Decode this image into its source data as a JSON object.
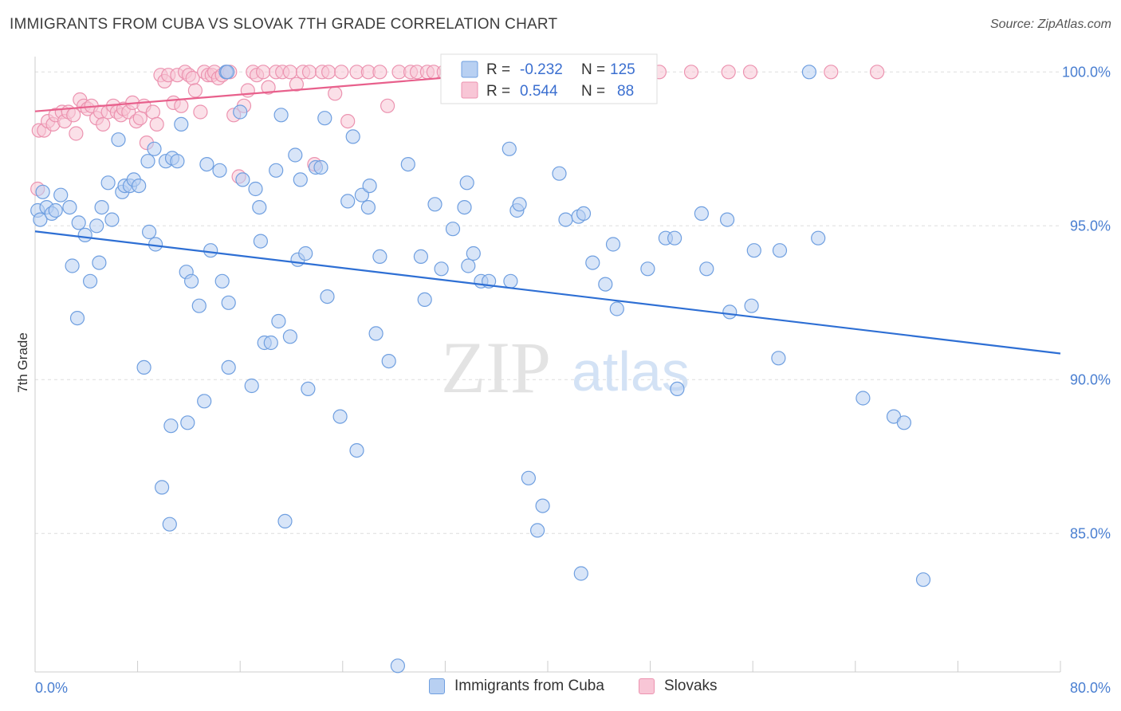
{
  "header": {
    "title": "IMMIGRANTS FROM CUBA VS SLOVAK 7TH GRADE CORRELATION CHART",
    "source": "Source: ZipAtlas.com"
  },
  "watermark": {
    "zip": "ZIP",
    "atlas": "atlas"
  },
  "colors": {
    "blue_fill": "#b8d0f2",
    "blue_stroke": "#6f9fe0",
    "blue_line": "#2e6fd4",
    "pink_fill": "#f8c6d6",
    "pink_stroke": "#ec93b0",
    "pink_line": "#e8608c",
    "tick_label": "#4a7fd1",
    "grid": "#dddddd"
  },
  "legend": {
    "rows": [
      {
        "r_label": "R =",
        "r_value": "-0.232",
        "n_label": "N =",
        "n_value": "125"
      },
      {
        "r_label": "R =",
        "r_value": "0.544",
        "n_label": "N =",
        "n_value": "88"
      }
    ]
  },
  "bottom_legend": [
    "Immigrants from Cuba",
    "Slovaks"
  ],
  "chart_data": {
    "type": "scatter",
    "title": "IMMIGRANTS FROM CUBA VS SLOVAK 7TH GRADE CORRELATION CHART",
    "ylabel": "7th Grade",
    "xlabel": "",
    "xlim": [
      0,
      80
    ],
    "ylim": [
      80.5,
      100.5
    ],
    "x_tick_labels": [
      "0.0%",
      "80.0%"
    ],
    "y_ticks": [
      85,
      90,
      95,
      100
    ],
    "y_tick_labels": [
      "85.0%",
      "90.0%",
      "95.0%",
      "100.0%"
    ],
    "grid": true,
    "legend_position": "top-center",
    "series": [
      {
        "name": "Immigrants from Cuba",
        "r": -0.232,
        "n": 125,
        "trend": {
          "x": [
            0,
            80
          ],
          "y": [
            94.82,
            90.85
          ]
        },
        "points": [
          [
            0.2,
            95.5
          ],
          [
            0.4,
            95.2
          ],
          [
            0.6,
            96.1
          ],
          [
            0.9,
            95.6
          ],
          [
            1.3,
            95.4
          ],
          [
            1.6,
            95.5
          ],
          [
            2.0,
            96.0
          ],
          [
            2.7,
            95.6
          ],
          [
            3.4,
            95.1
          ],
          [
            3.9,
            94.7
          ],
          [
            2.9,
            93.7
          ],
          [
            4.3,
            93.2
          ],
          [
            3.3,
            92.0
          ],
          [
            5.2,
            95.6
          ],
          [
            5.0,
            93.8
          ],
          [
            5.7,
            96.4
          ],
          [
            4.8,
            95.0
          ],
          [
            6.0,
            95.2
          ],
          [
            6.5,
            97.8
          ],
          [
            6.8,
            96.1
          ],
          [
            7.0,
            96.3
          ],
          [
            7.4,
            96.3
          ],
          [
            7.7,
            96.5
          ],
          [
            8.1,
            96.3
          ],
          [
            8.8,
            97.1
          ],
          [
            9.3,
            97.5
          ],
          [
            8.5,
            90.4
          ],
          [
            8.9,
            94.8
          ],
          [
            9.4,
            94.4
          ],
          [
            10.2,
            97.1
          ],
          [
            10.7,
            97.2
          ],
          [
            11.1,
            97.1
          ],
          [
            11.4,
            98.3
          ],
          [
            9.9,
            86.5
          ],
          [
            10.5,
            85.3
          ],
          [
            10.6,
            88.5
          ],
          [
            11.8,
            93.5
          ],
          [
            12.2,
            93.2
          ],
          [
            11.9,
            88.6
          ],
          [
            12.8,
            92.4
          ],
          [
            13.2,
            89.3
          ],
          [
            13.4,
            97.0
          ],
          [
            13.7,
            94.2
          ],
          [
            14.4,
            96.8
          ],
          [
            14.6,
            93.2
          ],
          [
            15.1,
            90.4
          ],
          [
            15.1,
            92.5
          ],
          [
            14.9,
            100.0
          ],
          [
            15.0,
            100.0
          ],
          [
            16.0,
            98.7
          ],
          [
            16.2,
            96.5
          ],
          [
            16.9,
            89.8
          ],
          [
            17.2,
            96.2
          ],
          [
            17.5,
            95.6
          ],
          [
            17.6,
            94.5
          ],
          [
            17.9,
            91.2
          ],
          [
            18.4,
            91.2
          ],
          [
            18.8,
            96.8
          ],
          [
            19.0,
            91.9
          ],
          [
            19.2,
            98.6
          ],
          [
            19.5,
            85.4
          ],
          [
            19.9,
            91.4
          ],
          [
            20.3,
            97.3
          ],
          [
            20.5,
            93.9
          ],
          [
            20.7,
            96.5
          ],
          [
            21.1,
            94.1
          ],
          [
            21.3,
            89.7
          ],
          [
            21.9,
            96.9
          ],
          [
            22.3,
            96.9
          ],
          [
            22.6,
            98.5
          ],
          [
            22.8,
            92.7
          ],
          [
            23.8,
            88.8
          ],
          [
            24.4,
            95.8
          ],
          [
            24.8,
            97.9
          ],
          [
            25.1,
            87.7
          ],
          [
            25.5,
            96.0
          ],
          [
            26.0,
            95.6
          ],
          [
            26.1,
            96.3
          ],
          [
            26.6,
            91.5
          ],
          [
            26.9,
            94.0
          ],
          [
            27.6,
            90.6
          ],
          [
            28.3,
            80.7
          ],
          [
            29.1,
            97.0
          ],
          [
            30.1,
            94.0
          ],
          [
            30.4,
            92.6
          ],
          [
            31.2,
            95.7
          ],
          [
            31.7,
            93.6
          ],
          [
            32.6,
            94.9
          ],
          [
            33.0,
            100.0
          ],
          [
            33.5,
            95.6
          ],
          [
            33.7,
            96.4
          ],
          [
            33.8,
            93.7
          ],
          [
            34.2,
            94.1
          ],
          [
            34.8,
            93.2
          ],
          [
            35.4,
            93.2
          ],
          [
            34.5,
            100.0
          ],
          [
            37.1,
            93.2
          ],
          [
            37.6,
            95.5
          ],
          [
            37.8,
            95.7
          ],
          [
            37.0,
            97.5
          ],
          [
            38.5,
            86.8
          ],
          [
            39.2,
            85.1
          ],
          [
            39.6,
            85.9
          ],
          [
            40.9,
            96.7
          ],
          [
            41.4,
            95.2
          ],
          [
            42.4,
            95.3
          ],
          [
            42.8,
            95.4
          ],
          [
            43.5,
            93.8
          ],
          [
            42.6,
            83.7
          ],
          [
            44.5,
            93.1
          ],
          [
            45.1,
            94.4
          ],
          [
            45.4,
            92.3
          ],
          [
            47.8,
            93.6
          ],
          [
            49.2,
            94.6
          ],
          [
            49.9,
            94.6
          ],
          [
            50.1,
            89.7
          ],
          [
            52.0,
            95.4
          ],
          [
            52.4,
            93.6
          ],
          [
            54.0,
            95.2
          ],
          [
            54.2,
            92.2
          ],
          [
            56.1,
            94.2
          ],
          [
            55.9,
            92.4
          ],
          [
            58.0,
            90.7
          ],
          [
            58.1,
            94.2
          ],
          [
            60.4,
            100.0
          ],
          [
            61.1,
            94.6
          ],
          [
            64.6,
            89.4
          ],
          [
            67.0,
            88.8
          ],
          [
            67.8,
            88.6
          ],
          [
            69.3,
            83.5
          ]
        ]
      },
      {
        "name": "Slovaks",
        "r": 0.544,
        "n": 88,
        "trend": {
          "x": [
            0,
            37.5
          ],
          "y": [
            98.72,
            100.0
          ]
        },
        "points": [
          [
            0.2,
            96.2
          ],
          [
            0.3,
            98.1
          ],
          [
            0.7,
            98.1
          ],
          [
            1.0,
            98.4
          ],
          [
            1.4,
            98.3
          ],
          [
            1.6,
            98.6
          ],
          [
            2.1,
            98.7
          ],
          [
            2.3,
            98.4
          ],
          [
            2.6,
            98.7
          ],
          [
            3.0,
            98.6
          ],
          [
            3.2,
            98.0
          ],
          [
            3.5,
            99.1
          ],
          [
            3.8,
            98.9
          ],
          [
            4.1,
            98.8
          ],
          [
            4.4,
            98.9
          ],
          [
            4.8,
            98.5
          ],
          [
            5.1,
            98.7
          ],
          [
            5.3,
            98.3
          ],
          [
            5.7,
            98.7
          ],
          [
            6.1,
            98.9
          ],
          [
            6.4,
            98.7
          ],
          [
            6.7,
            98.6
          ],
          [
            6.9,
            98.8
          ],
          [
            7.3,
            98.7
          ],
          [
            7.6,
            99.0
          ],
          [
            7.9,
            98.4
          ],
          [
            8.2,
            98.5
          ],
          [
            8.5,
            98.9
          ],
          [
            8.7,
            97.7
          ],
          [
            9.2,
            98.7
          ],
          [
            9.5,
            98.3
          ],
          [
            9.8,
            99.9
          ],
          [
            10.1,
            99.7
          ],
          [
            10.4,
            99.9
          ],
          [
            10.8,
            99.0
          ],
          [
            11.1,
            99.9
          ],
          [
            11.4,
            98.9
          ],
          [
            11.7,
            100.0
          ],
          [
            12.0,
            99.9
          ],
          [
            12.3,
            99.8
          ],
          [
            12.5,
            99.4
          ],
          [
            12.9,
            98.7
          ],
          [
            13.2,
            100.0
          ],
          [
            13.5,
            99.9
          ],
          [
            13.8,
            99.9
          ],
          [
            14.0,
            100.0
          ],
          [
            14.3,
            99.8
          ],
          [
            14.6,
            99.9
          ],
          [
            14.9,
            100.0
          ],
          [
            15.2,
            100.0
          ],
          [
            15.5,
            98.6
          ],
          [
            15.9,
            96.6
          ],
          [
            16.3,
            98.9
          ],
          [
            16.6,
            99.4
          ],
          [
            17.0,
            100.0
          ],
          [
            17.3,
            99.9
          ],
          [
            17.8,
            100.0
          ],
          [
            18.2,
            99.5
          ],
          [
            18.8,
            100.0
          ],
          [
            19.3,
            100.0
          ],
          [
            19.9,
            100.0
          ],
          [
            20.4,
            99.6
          ],
          [
            20.9,
            100.0
          ],
          [
            21.4,
            100.0
          ],
          [
            21.8,
            97.0
          ],
          [
            22.4,
            100.0
          ],
          [
            22.9,
            100.0
          ],
          [
            23.4,
            99.3
          ],
          [
            23.9,
            100.0
          ],
          [
            24.4,
            98.4
          ],
          [
            25.1,
            100.0
          ],
          [
            26.0,
            100.0
          ],
          [
            26.9,
            100.0
          ],
          [
            27.5,
            98.9
          ],
          [
            28.4,
            100.0
          ],
          [
            29.3,
            100.0
          ],
          [
            29.8,
            100.0
          ],
          [
            30.6,
            100.0
          ],
          [
            31.1,
            100.0
          ],
          [
            31.9,
            100.0
          ],
          [
            33.4,
            100.0
          ],
          [
            37.9,
            100.0
          ],
          [
            48.7,
            100.0
          ],
          [
            51.2,
            100.0
          ],
          [
            54.1,
            100.0
          ],
          [
            55.8,
            100.0
          ],
          [
            62.1,
            100.0
          ],
          [
            65.7,
            100.0
          ]
        ]
      }
    ]
  }
}
